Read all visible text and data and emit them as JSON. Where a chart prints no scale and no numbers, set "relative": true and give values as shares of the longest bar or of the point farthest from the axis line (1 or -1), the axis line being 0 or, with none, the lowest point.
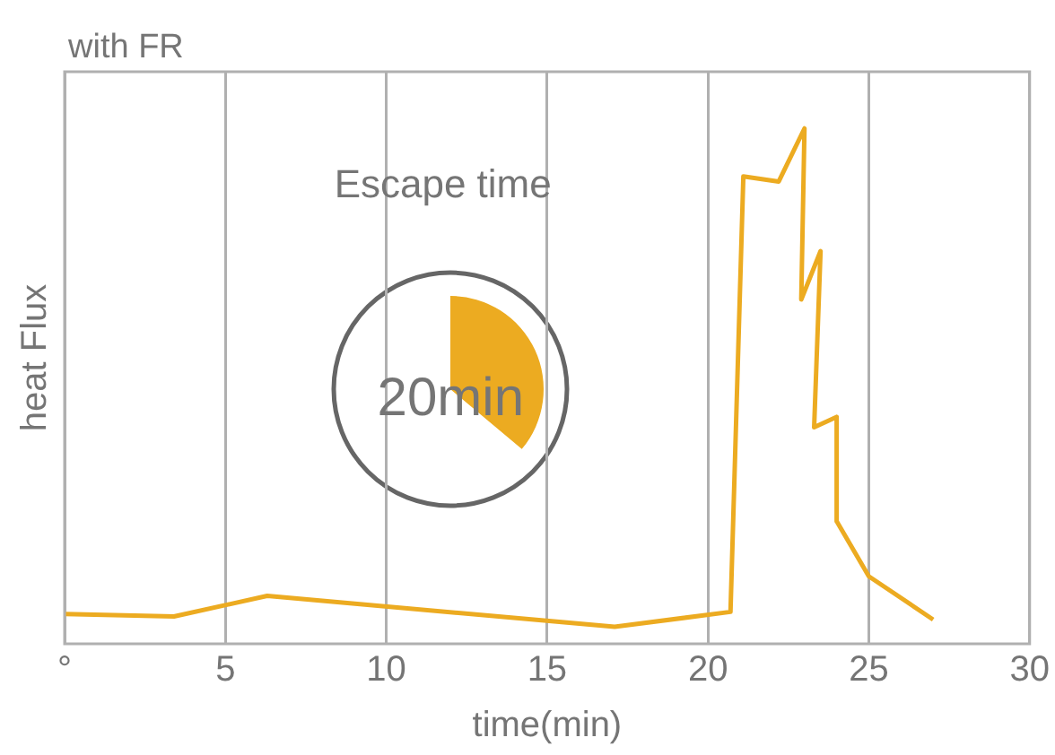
{
  "chart_data": {
    "type": "line",
    "title": "with FR",
    "xlabel": "time(min)",
    "ylabel": "heat Flux",
    "relative": true,
    "xlim": [
      0,
      30
    ],
    "xticks": [
      {
        "value": 0,
        "label": "°"
      },
      5,
      10,
      15,
      20,
      25,
      30
    ],
    "grid": "x",
    "legend": false,
    "marker": "none",
    "line_style": "solid",
    "series": [
      {
        "color": "#ecab21",
        "x": [
          0,
          3.4,
          6.3,
          17.1,
          20.7,
          21.1,
          22.2,
          23.0,
          22.9,
          23.5,
          23.3,
          24.0,
          24.0,
          25.0,
          27.0
        ],
        "values": [
          0.058,
          0.053,
          0.093,
          0.033,
          0.062,
          0.907,
          0.897,
          1,
          0.668,
          0.762,
          0.42,
          0.44,
          0.238,
          0.131,
          0.047
        ]
      }
    ],
    "annotations": [
      "Escape time",
      "20min"
    ]
  }
}
